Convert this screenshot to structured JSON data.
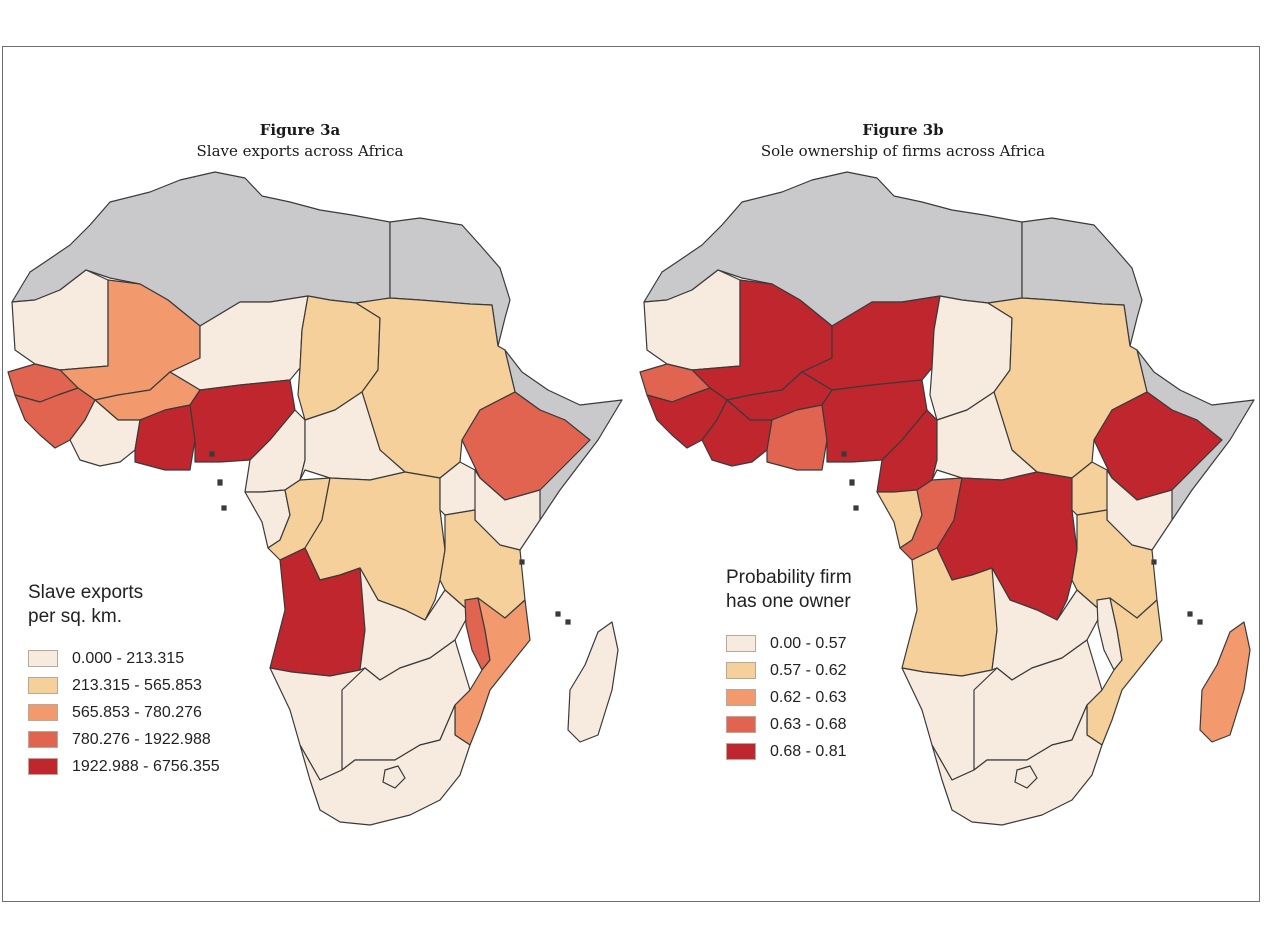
{
  "figure_a": {
    "title": "Figure 3a",
    "subtitle": "Slave exports across Africa",
    "legend_title_line1": "Slave exports",
    "legend_title_line2": "per sq. km.",
    "legend": [
      {
        "label": "0.000 - 213.315",
        "color": "#f7ebdf"
      },
      {
        "label": "213.315 - 565.853",
        "color": "#f5d09a"
      },
      {
        "label": "565.853 - 780.276",
        "color": "#f29a6e"
      },
      {
        "label": "780.276 - 1922.988",
        "color": "#e0644f"
      },
      {
        "label": "1922.988 - 6756.355",
        "color": "#c0262d"
      }
    ]
  },
  "figure_b": {
    "title": "Figure 3b",
    "subtitle": "Sole ownership of firms across Africa",
    "legend_title_line1": "Probability firm",
    "legend_title_line2": "has one owner",
    "legend": [
      {
        "label": "0.00 - 0.57",
        "color": "#f7ebdf"
      },
      {
        "label": "0.57 - 0.62",
        "color": "#f5d09a"
      },
      {
        "label": "0.62 - 0.63",
        "color": "#f29a6e"
      },
      {
        "label": "0.63 - 0.68",
        "color": "#e0644f"
      },
      {
        "label": "0.68 - 0.81",
        "color": "#c0262d"
      }
    ]
  },
  "colors": {
    "no_data": "#c9c9cb",
    "border": "#3a3a3a"
  },
  "map_a_regions": [
    {
      "name": "north-africa",
      "class": "nodata"
    },
    {
      "name": "egypt-libya",
      "class": "nodata"
    },
    {
      "name": "horn-somalia",
      "class": "nodata"
    },
    {
      "name": "mauritania",
      "class": 0
    },
    {
      "name": "mali",
      "class": 2
    },
    {
      "name": "niger",
      "class": 0
    },
    {
      "name": "chad",
      "class": 1
    },
    {
      "name": "sudan",
      "class": 1
    },
    {
      "name": "senegal",
      "class": 3
    },
    {
      "name": "guinea",
      "class": 3
    },
    {
      "name": "burkina",
      "class": 2
    },
    {
      "name": "cote-divoire",
      "class": 0
    },
    {
      "name": "ghana-togo-benin",
      "class": 4
    },
    {
      "name": "nigeria",
      "class": 4
    },
    {
      "name": "cameroon",
      "class": 0
    },
    {
      "name": "car",
      "class": 0
    },
    {
      "name": "ethiopia",
      "class": 3
    },
    {
      "name": "gabon",
      "class": 0
    },
    {
      "name": "congo",
      "class": 1
    },
    {
      "name": "drc",
      "class": 1
    },
    {
      "name": "uganda",
      "class": 0
    },
    {
      "name": "kenya",
      "class": 0
    },
    {
      "name": "tanzania",
      "class": 1
    },
    {
      "name": "angola",
      "class": 4
    },
    {
      "name": "zambia",
      "class": 0
    },
    {
      "name": "malawi",
      "class": 3
    },
    {
      "name": "mozambique",
      "class": 2
    },
    {
      "name": "namibia",
      "class": 0
    },
    {
      "name": "botswana-zimbabwe",
      "class": 0
    },
    {
      "name": "south-africa",
      "class": 0
    },
    {
      "name": "madagascar",
      "class": 0
    }
  ],
  "map_b_regions": [
    {
      "name": "north-africa",
      "class": "nodata"
    },
    {
      "name": "egypt-libya",
      "class": "nodata"
    },
    {
      "name": "horn-somalia",
      "class": "nodata"
    },
    {
      "name": "mauritania",
      "class": 0
    },
    {
      "name": "mali",
      "class": 4
    },
    {
      "name": "niger",
      "class": 4
    },
    {
      "name": "chad",
      "class": 0
    },
    {
      "name": "sudan",
      "class": 1
    },
    {
      "name": "senegal",
      "class": 3
    },
    {
      "name": "guinea",
      "class": 4
    },
    {
      "name": "burkina",
      "class": 4
    },
    {
      "name": "cote-divoire",
      "class": 4
    },
    {
      "name": "ghana-togo-benin",
      "class": 3
    },
    {
      "name": "nigeria",
      "class": 4
    },
    {
      "name": "cameroon",
      "class": 4
    },
    {
      "name": "car",
      "class": 0
    },
    {
      "name": "ethiopia",
      "class": 4
    },
    {
      "name": "gabon",
      "class": 1
    },
    {
      "name": "congo",
      "class": 3
    },
    {
      "name": "drc",
      "class": 4
    },
    {
      "name": "uganda",
      "class": 1
    },
    {
      "name": "kenya",
      "class": 0
    },
    {
      "name": "tanzania",
      "class": 1
    },
    {
      "name": "angola",
      "class": 1
    },
    {
      "name": "zambia",
      "class": 0
    },
    {
      "name": "malawi",
      "class": 0
    },
    {
      "name": "mozambique",
      "class": 1
    },
    {
      "name": "namibia",
      "class": 0
    },
    {
      "name": "botswana-zimbabwe",
      "class": 0
    },
    {
      "name": "south-africa",
      "class": 0
    },
    {
      "name": "madagascar",
      "class": 2
    }
  ]
}
